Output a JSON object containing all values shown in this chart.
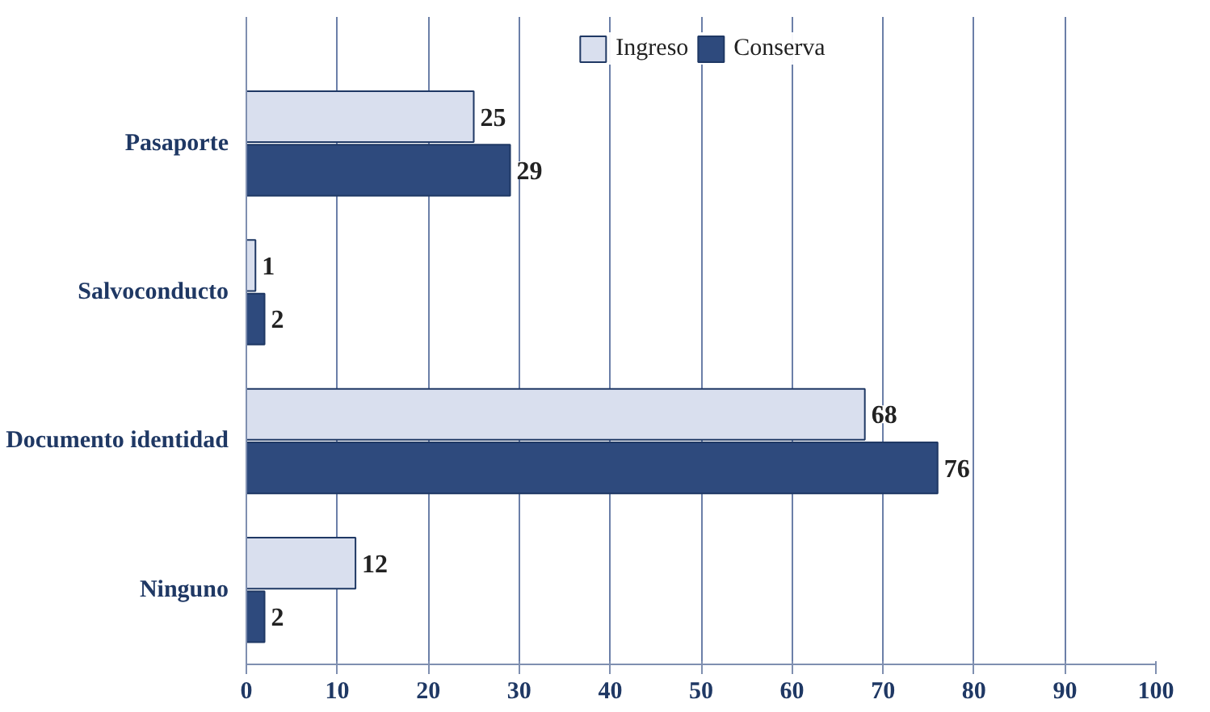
{
  "chart_data": {
    "type": "bar",
    "orientation": "horizontal",
    "categories": [
      "Pasaporte",
      "Salvoconducto",
      "Documento identidad",
      "Ninguno"
    ],
    "series": [
      {
        "name": "Ingreso",
        "color": "#d9dfee",
        "values": [
          25,
          1,
          68,
          12
        ]
      },
      {
        "name": "Conserva",
        "color": "#2e4a7d",
        "values": [
          29,
          2,
          76,
          2
        ]
      }
    ],
    "xlim": [
      0,
      100
    ],
    "xticks": [
      0,
      10,
      20,
      30,
      40,
      50,
      60,
      70,
      80,
      90,
      100
    ],
    "grid": "x",
    "legend": "top",
    "data_labels": true
  }
}
